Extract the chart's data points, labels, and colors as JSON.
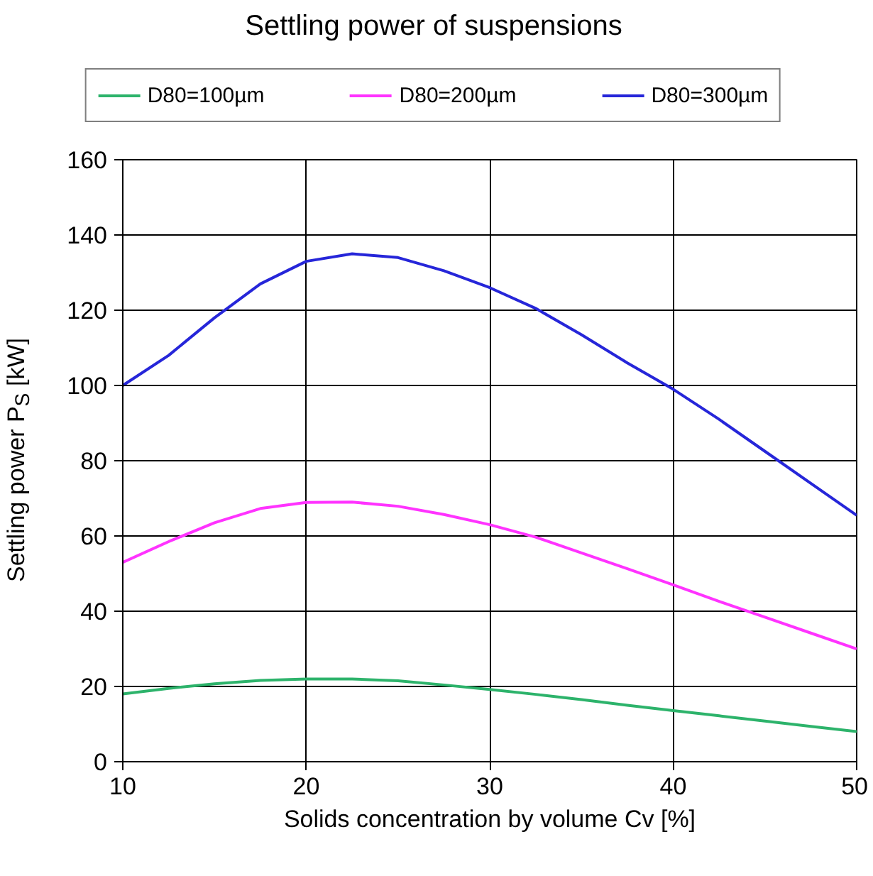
{
  "chart_data": {
    "type": "line",
    "title": "Settling power of suspensions",
    "xlabel": "Solids concentration by volume Cv [%]",
    "ylabel": "Settling power P$_{S}$ [kW]",
    "xlim": [
      10,
      50
    ],
    "ylim": [
      0,
      160
    ],
    "xticks": [
      10,
      20,
      30,
      40,
      50
    ],
    "yticks": [
      0,
      20,
      40,
      60,
      80,
      100,
      120,
      140,
      160
    ],
    "grid": true,
    "legend": "top",
    "marker": "none",
    "line_style": "solid",
    "x": [
      10,
      12.5,
      15,
      17.5,
      20,
      22.5,
      25,
      27.5,
      30,
      32.5,
      35,
      37.5,
      40,
      42.5,
      45,
      47.5,
      50
    ],
    "series": [
      {
        "name": "D80=100µm",
        "color": "#2db36b",
        "values": [
          18,
          19.5,
          20.7,
          21.6,
          22,
          22,
          21.5,
          20.4,
          19.2,
          17.9,
          16.5,
          15,
          13.6,
          12.2,
          10.8,
          9.4,
          8
        ]
      },
      {
        "name": "D80=200µm",
        "color": "#ff33ff",
        "values": [
          53,
          58.5,
          63.5,
          67.3,
          68.9,
          69,
          67.9,
          65.7,
          63,
          59.7,
          55.5,
          51.3,
          47,
          42.6,
          38.4,
          34.2,
          30
        ]
      },
      {
        "name": "D80=300µm",
        "color": "#2626d9",
        "values": [
          100,
          108,
          118,
          127,
          133,
          135,
          134,
          130.5,
          126,
          120.5,
          113.5,
          106,
          99,
          91,
          82.5,
          74,
          65.5
        ]
      }
    ]
  }
}
